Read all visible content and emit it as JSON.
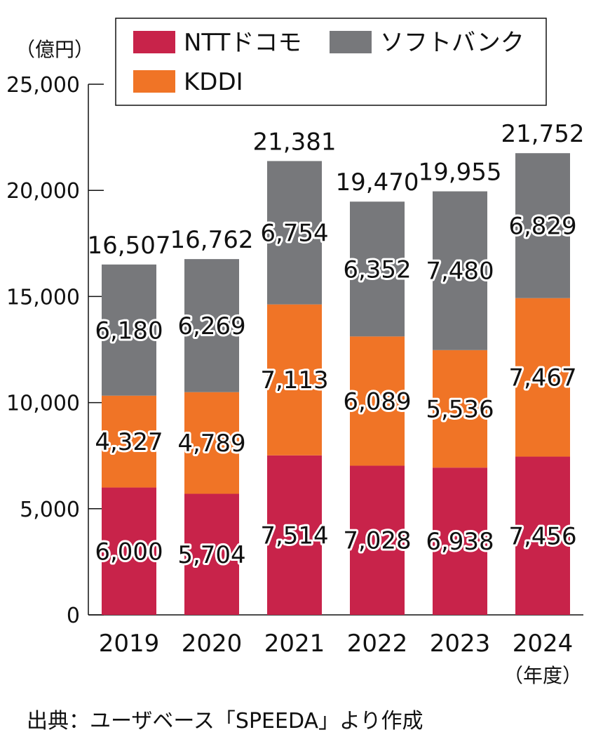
{
  "chart_data": {
    "type": "bar",
    "stacked": true,
    "categories": [
      "2019",
      "2020",
      "2021",
      "2022",
      "2023",
      "2024"
    ],
    "series": [
      {
        "name": "NTTドコモ",
        "color": "#c8234a",
        "values": [
          6000,
          5704,
          7514,
          7028,
          6938,
          7456
        ]
      },
      {
        "name": "KDDI",
        "color": "#f07426",
        "values": [
          4327,
          4789,
          7113,
          6089,
          5536,
          7467
        ]
      },
      {
        "name": "ソフトバンク",
        "color": "#77787b",
        "values": [
          6180,
          6269,
          6754,
          6352,
          7480,
          6829
        ]
      }
    ],
    "totals": [
      16507,
      16762,
      21381,
      19470,
      19955,
      21752
    ],
    "ylabel": "（億円）",
    "xlabel": "（年度）",
    "ylim": [
      0,
      25000
    ],
    "yticks": [
      0,
      5000,
      10000,
      15000,
      20000,
      25000
    ],
    "grid": false,
    "legend_position": "top"
  },
  "source": "出典：ユーザベース「SPEEDA」より作成"
}
